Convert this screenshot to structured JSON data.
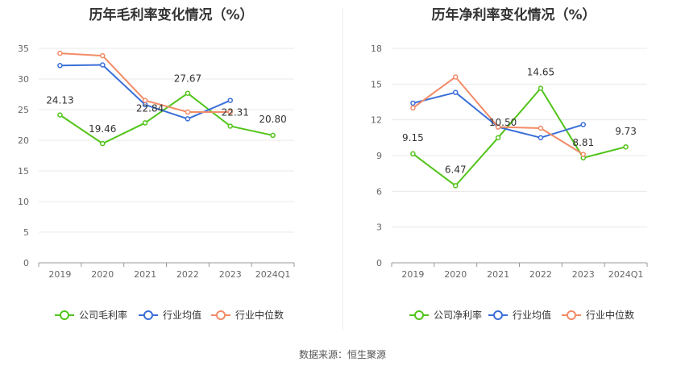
{
  "colors": {
    "company": "#52c41a",
    "industry_avg": "#3b6fd8",
    "industry_median": "#f28b67",
    "grid": "#e8e8e8",
    "axis": "#999999",
    "text": "#666666"
  },
  "source": "数据来源：恒生聚源",
  "legend_icon": "circle-line-icon",
  "chart_data": [
    {
      "type": "line",
      "title": "历年毛利率变化情况（%）",
      "categories": [
        "2019",
        "2020",
        "2021",
        "2022",
        "2023",
        "2024Q1"
      ],
      "ylim": [
        0,
        35
      ],
      "yticks": [
        "0",
        "5",
        "10",
        "15",
        "20",
        "25",
        "30",
        "35"
      ],
      "xlabel": "",
      "ylabel": "",
      "grid": true,
      "legend_position": "bottom",
      "series": [
        {
          "name": "公司毛利率",
          "values": [
            24.13,
            19.46,
            22.84,
            27.67,
            22.31,
            20.8
          ],
          "labels": [
            "24.13",
            "19.46",
            "22.84",
            "27.67",
            "22.31",
            "20.80"
          ]
        },
        {
          "name": "行业均值",
          "values": [
            32.2,
            32.3,
            25.8,
            23.5,
            26.5,
            null
          ]
        },
        {
          "name": "行业中位数",
          "values": [
            34.2,
            33.8,
            26.5,
            24.6,
            24.6,
            null
          ]
        }
      ]
    },
    {
      "type": "line",
      "title": "历年净利率变化情况（%）",
      "categories": [
        "2019",
        "2020",
        "2021",
        "2022",
        "2023",
        "2024Q1"
      ],
      "ylim": [
        0,
        18
      ],
      "yticks": [
        "0",
        "3",
        "6",
        "9",
        "12",
        "15",
        "18"
      ],
      "xlabel": "",
      "ylabel": "",
      "grid": true,
      "legend_position": "bottom",
      "series": [
        {
          "name": "公司净利率",
          "values": [
            9.15,
            6.47,
            10.5,
            14.65,
            8.81,
            9.73
          ],
          "labels": [
            "9.15",
            "6.47",
            "10.50",
            "14.65",
            "8.81",
            "9.73"
          ]
        },
        {
          "name": "行业均值",
          "values": [
            13.4,
            14.3,
            11.4,
            10.5,
            11.6,
            null
          ]
        },
        {
          "name": "行业中位数",
          "values": [
            13.0,
            15.6,
            11.4,
            11.3,
            9.1,
            null
          ]
        }
      ]
    }
  ]
}
